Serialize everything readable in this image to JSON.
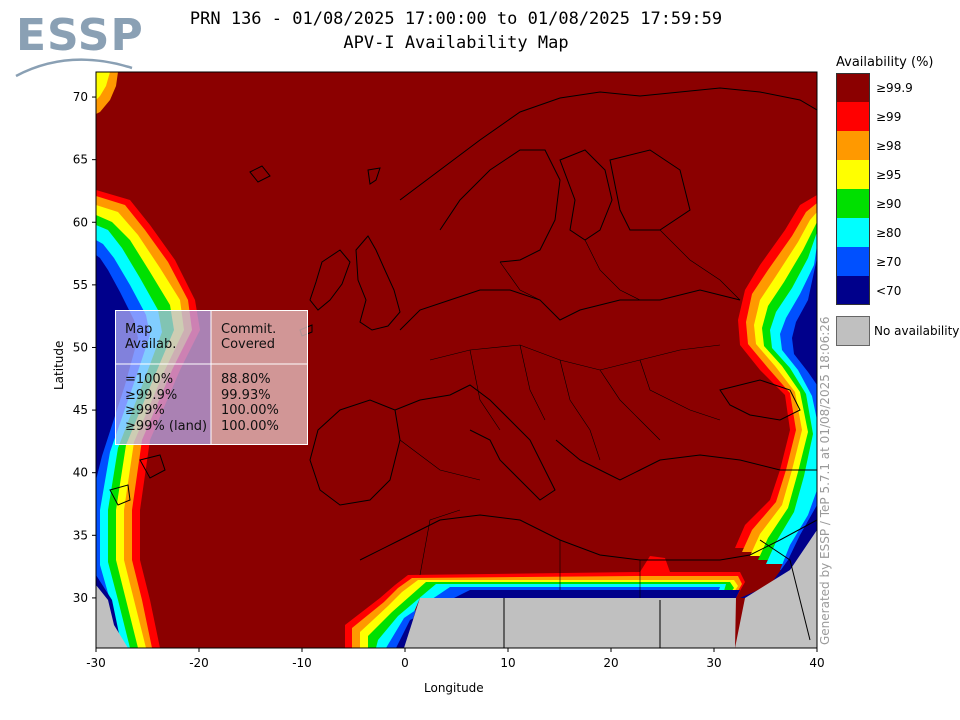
{
  "header": {
    "logo_text": "ESSP",
    "title_line1": "PRN 136 - 01/08/2025 17:00:00 to 01/08/2025 17:59:59",
    "title_line2": "APV-I Availability Map"
  },
  "colors": {
    "c999": "#8b0000",
    "c99": "#ff0000",
    "c98": "#ff9900",
    "c95": "#ffff00",
    "c90": "#00e000",
    "c80": "#00ffff",
    "c70": "#0050ff",
    "clt70": "#00008b",
    "noavail": "#c0c0c0"
  },
  "legend": {
    "title": "Availability (%)",
    "items": [
      {
        "label": "≥99.9",
        "color": "#8b0000"
      },
      {
        "label": "≥99",
        "color": "#ff0000"
      },
      {
        "label": "≥98",
        "color": "#ff9900"
      },
      {
        "label": "≥95",
        "color": "#ffff00"
      },
      {
        "label": "≥90",
        "color": "#00e000"
      },
      {
        "label": "≥80",
        "color": "#00ffff"
      },
      {
        "label": "≥70",
        "color": "#0050ff"
      },
      {
        "label": "<70",
        "color": "#00008b"
      }
    ],
    "no_availability": "No availability"
  },
  "axes": {
    "xlabel": "Longitude",
    "ylabel": "Latitude",
    "xlim": [
      -30,
      40
    ],
    "ylim": [
      26,
      72
    ],
    "xticks": [
      -30,
      -20,
      -10,
      0,
      10,
      20,
      30,
      40
    ],
    "yticks": [
      30,
      35,
      40,
      45,
      50,
      55,
      60,
      65,
      70
    ]
  },
  "stats_table": {
    "col1_header": "Map\nAvailab.",
    "col2_header": "Commit.\nCovered",
    "rows": [
      {
        "avail": "=100%",
        "covered": "88.80%"
      },
      {
        "avail": "≥99.9%",
        "covered": "99.93%"
      },
      {
        "avail": "≥99%",
        "covered": "100.00%"
      },
      {
        "avail": "≥99% (land)",
        "covered": "100.00%"
      }
    ]
  },
  "watermark": "Generated by ESSP / TeP 5.7.1 at 01/08/2025 18:06:26"
}
